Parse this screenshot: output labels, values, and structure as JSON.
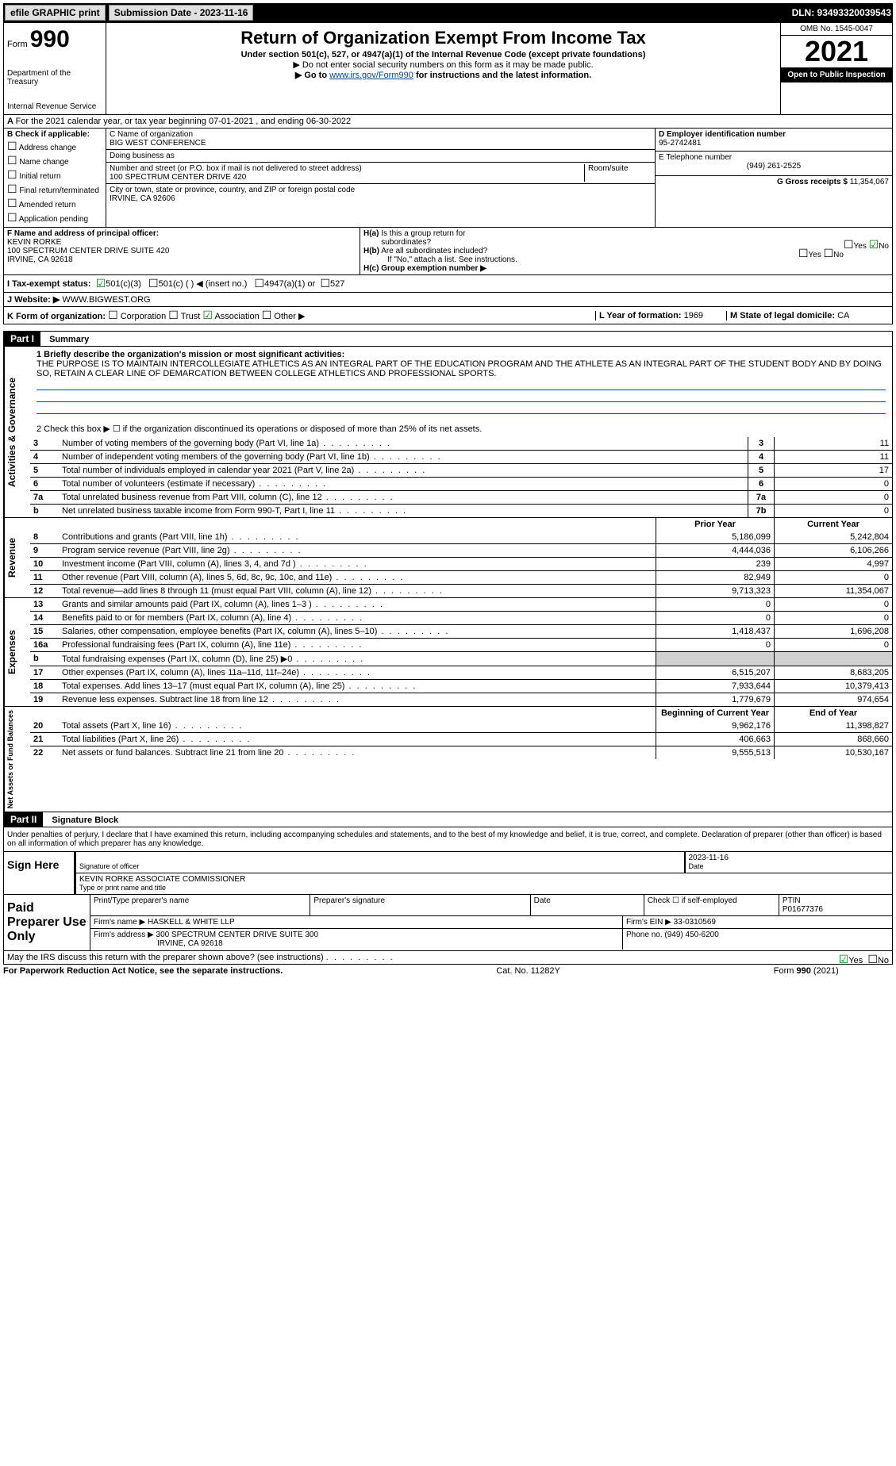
{
  "top_bar": {
    "efile_label": "efile GRAPHIC print",
    "submission_btn": "Submission Date - 2023-11-16",
    "dln": "DLN: 93493320039543"
  },
  "header": {
    "form_label": "Form",
    "form_number": "990",
    "dept": "Department of the Treasury",
    "irs": "Internal Revenue Service",
    "title": "Return of Organization Exempt From Income Tax",
    "subtitle": "Under section 501(c), 527, or 4947(a)(1) of the Internal Revenue Code (except private foundations)",
    "note1": "▶ Do not enter social security numbers on this form as it may be made public.",
    "note2_pre": "▶ Go to ",
    "note2_link": "www.irs.gov/Form990",
    "note2_post": " for instructions and the latest information.",
    "omb": "OMB No. 1545-0047",
    "year": "2021",
    "open": "Open to Public Inspection"
  },
  "line_a": "For the 2021 calendar year, or tax year beginning 07-01-2021   , and ending 06-30-2022",
  "col_b": {
    "title": "B Check if applicable:",
    "items": [
      "Address change",
      "Name change",
      "Initial return",
      "Final return/terminated",
      "Amended return",
      "Application pending"
    ]
  },
  "col_c": {
    "c_label": "C Name of organization",
    "org_name": "BIG WEST CONFERENCE",
    "dba_label": "Doing business as",
    "addr_label": "Number and street (or P.O. box if mail is not delivered to street address)",
    "room_label": "Room/suite",
    "addr": "100 SPECTRUM CENTER DRIVE 420",
    "city_label": "City or town, state or province, country, and ZIP or foreign postal code",
    "city": "IRVINE, CA  92606"
  },
  "col_d": {
    "d_label": "D Employer identification number",
    "ein": "95-2742481",
    "e_label": "E Telephone number",
    "phone": "(949) 261-2525",
    "g_label": "G Gross receipts $",
    "gross": "11,354,067"
  },
  "row_f": {
    "f_label": "F Name and address of principal officer:",
    "name": "KEVIN RORKE",
    "addr1": "100 SPECTRUM CENTER DRIVE SUITE 420",
    "addr2": "IRVINE, CA  92618",
    "ha_label": "H(a)  Is this a group return for subordinates?",
    "ha_yes": "Yes",
    "ha_no": "No",
    "hb_label": "H(b)  Are all subordinates included?",
    "hb_note": "If \"No,\" attach a list. See instructions.",
    "hc_label": "H(c)  Group exemption number ▶"
  },
  "row_i": {
    "label": "I   Tax-exempt status:",
    "c3": "501(c)(3)",
    "c_other": "501(c) (  ) ◀ (insert no.)",
    "a1": "4947(a)(1) or",
    "527": "527"
  },
  "row_j": {
    "label": "J   Website: ▶",
    "value": "WWW.BIGWEST.ORG"
  },
  "row_k": {
    "k_label": "K Form of organization:",
    "opts": [
      "Corporation",
      "Trust",
      "Association",
      "Other ▶"
    ],
    "l_label": "L Year of formation:",
    "l_val": "1969",
    "m_label": "M State of legal domicile:",
    "m_val": "CA"
  },
  "part1": {
    "header": "Part I",
    "title": "Summary",
    "q1_label": "1  Briefly describe the organization's mission or most significant activities:",
    "mission": "THE PURPOSE IS TO MAINTAIN INTERCOLLEGIATE ATHLETICS AS AN INTEGRAL PART OF THE EDUCATION PROGRAM AND THE ATHLETE AS AN INTEGRAL PART OF THE STUDENT BODY AND BY DOING SO, RETAIN A CLEAR LINE OF DEMARCATION BETWEEN COLLEGE ATHLETICS AND PROFESSIONAL SPORTS.",
    "q2": "2   Check this box ▶ ☐  if the organization discontinued its operations or disposed of more than 25% of its net assets."
  },
  "governance_lines": [
    {
      "num": "3",
      "label": "Number of voting members of the governing body (Part VI, line 1a)",
      "cell": "3",
      "val": "11"
    },
    {
      "num": "4",
      "label": "Number of independent voting members of the governing body (Part VI, line 1b)",
      "cell": "4",
      "val": "11"
    },
    {
      "num": "5",
      "label": "Total number of individuals employed in calendar year 2021 (Part V, line 2a)",
      "cell": "5",
      "val": "17"
    },
    {
      "num": "6",
      "label": "Total number of volunteers (estimate if necessary)",
      "cell": "6",
      "val": "0"
    },
    {
      "num": "7a",
      "label": "Total unrelated business revenue from Part VIII, column (C), line 12",
      "cell": "7a",
      "val": "0"
    },
    {
      "num": "b",
      "label": "Net unrelated business taxable income from Form 990-T, Part I, line 11",
      "cell": "7b",
      "val": "0"
    }
  ],
  "two_col_headers": {
    "prior": "Prior Year",
    "current": "Current Year"
  },
  "revenue_lines": [
    {
      "num": "8",
      "label": "Contributions and grants (Part VIII, line 1h)",
      "prior": "5,186,099",
      "current": "5,242,804"
    },
    {
      "num": "9",
      "label": "Program service revenue (Part VIII, line 2g)",
      "prior": "4,444,036",
      "current": "6,106,266"
    },
    {
      "num": "10",
      "label": "Investment income (Part VIII, column (A), lines 3, 4, and 7d )",
      "prior": "239",
      "current": "4,997"
    },
    {
      "num": "11",
      "label": "Other revenue (Part VIII, column (A), lines 5, 6d, 8c, 9c, 10c, and 11e)",
      "prior": "82,949",
      "current": "0"
    },
    {
      "num": "12",
      "label": "Total revenue—add lines 8 through 11 (must equal Part VIII, column (A), line 12)",
      "prior": "9,713,323",
      "current": "11,354,067"
    }
  ],
  "expense_lines": [
    {
      "num": "13",
      "label": "Grants and similar amounts paid (Part IX, column (A), lines 1–3 )",
      "prior": "0",
      "current": "0"
    },
    {
      "num": "14",
      "label": "Benefits paid to or for members (Part IX, column (A), line 4)",
      "prior": "0",
      "current": "0"
    },
    {
      "num": "15",
      "label": "Salaries, other compensation, employee benefits (Part IX, column (A), lines 5–10)",
      "prior": "1,418,437",
      "current": "1,696,208"
    },
    {
      "num": "16a",
      "label": "Professional fundraising fees (Part IX, column (A), line 11e)",
      "prior": "0",
      "current": "0"
    },
    {
      "num": "b",
      "label": "Total fundraising expenses (Part IX, column (D), line 25) ▶0",
      "prior": "",
      "current": "",
      "shade": true
    },
    {
      "num": "17",
      "label": "Other expenses (Part IX, column (A), lines 11a–11d, 11f–24e)",
      "prior": "6,515,207",
      "current": "8,683,205"
    },
    {
      "num": "18",
      "label": "Total expenses. Add lines 13–17 (must equal Part IX, column (A), line 25)",
      "prior": "7,933,644",
      "current": "10,379,413"
    },
    {
      "num": "19",
      "label": "Revenue less expenses. Subtract line 18 from line 12",
      "prior": "1,779,679",
      "current": "974,654"
    }
  ],
  "net_headers": {
    "begin": "Beginning of Current Year",
    "end": "End of Year"
  },
  "net_lines": [
    {
      "num": "20",
      "label": "Total assets (Part X, line 16)",
      "prior": "9,962,176",
      "current": "11,398,827"
    },
    {
      "num": "21",
      "label": "Total liabilities (Part X, line 26)",
      "prior": "406,663",
      "current": "868,660"
    },
    {
      "num": "22",
      "label": "Net assets or fund balances. Subtract line 21 from line 20",
      "prior": "9,555,513",
      "current": "10,530,167"
    }
  ],
  "part2": {
    "header": "Part II",
    "title": "Signature Block",
    "declare": "Under penalties of perjury, I declare that I have examined this return, including accompanying schedules and statements, and to the best of my knowledge and belief, it is true, correct, and complete. Declaration of preparer (other than officer) is based on all information of which preparer has any knowledge."
  },
  "sign": {
    "label": "Sign Here",
    "sig_label": "Signature of officer",
    "date_label": "Date",
    "date": "2023-11-16",
    "name": "KEVIN RORKE  ASSOCIATE COMMISSIONER",
    "name_label": "Type or print name and title"
  },
  "paid": {
    "label": "Paid Preparer Use Only",
    "h1": "Print/Type preparer's name",
    "h2": "Preparer's signature",
    "h3": "Date",
    "h4_pre": "Check ☐ if self-employed",
    "h5": "PTIN",
    "ptin": "P01677376",
    "firm_label": "Firm's name    ▶",
    "firm": "HASKELL & WHITE LLP",
    "ein_label": "Firm's EIN ▶",
    "ein": "33-0310569",
    "addr_label": "Firm's address ▶",
    "addr1": "300 SPECTRUM CENTER DRIVE SUITE 300",
    "addr2": "IRVINE, CA  92618",
    "phone_label": "Phone no.",
    "phone": "(949) 450-6200"
  },
  "discuss": {
    "label": "May the IRS discuss this return with the preparer shown above? (see instructions)",
    "yes": "Yes",
    "no": "No"
  },
  "footer": {
    "left": "For Paperwork Reduction Act Notice, see the separate instructions.",
    "center": "Cat. No. 11282Y",
    "right_pre": "Form ",
    "right_bold": "990",
    "right_post": " (2021)"
  },
  "side_labels": {
    "gov": "Activities & Governance",
    "rev": "Revenue",
    "exp": "Expenses",
    "net": "Net Assets or Fund Balances"
  }
}
